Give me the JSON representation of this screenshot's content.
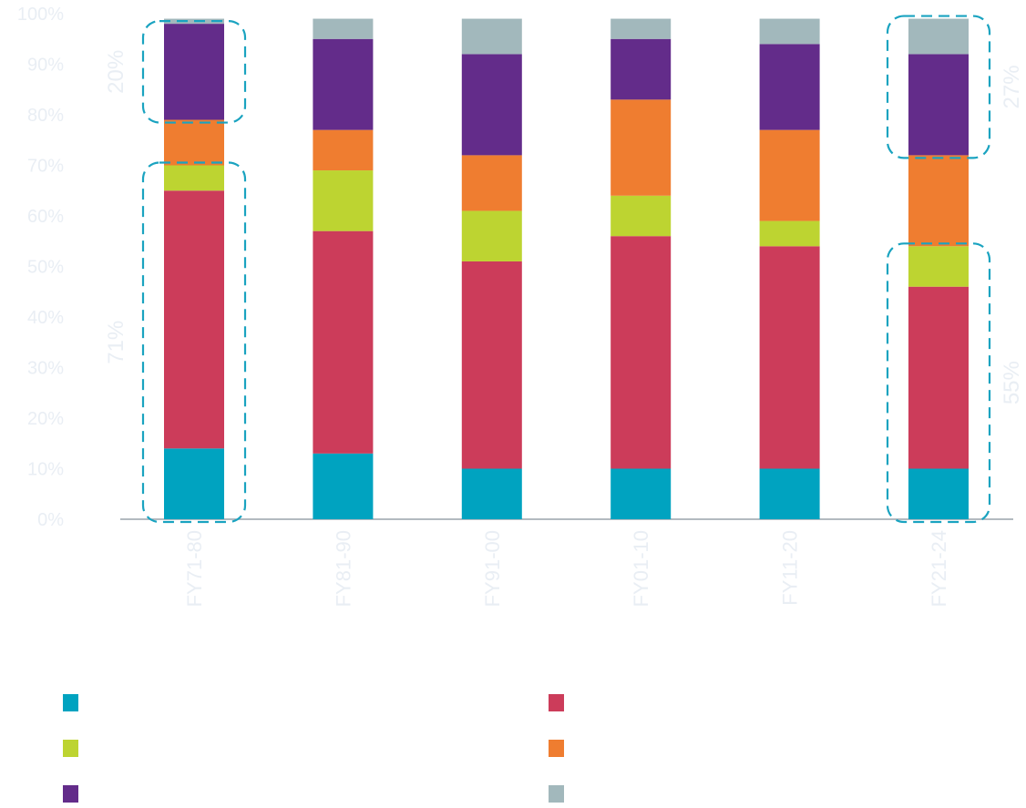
{
  "chart_data": {
    "type": "bar",
    "stacked": true,
    "categories": [
      "FY71-80",
      "FY81-90",
      "FY91-00",
      "FY01-10",
      "FY11-20",
      "FY21-24"
    ],
    "series": [
      {
        "color": "#00a3c0",
        "values": [
          14,
          13,
          10,
          10,
          10,
          10
        ]
      },
      {
        "color": "#cc3c5a",
        "values": [
          51,
          44,
          41,
          46,
          44,
          36
        ]
      },
      {
        "color": "#bdd431",
        "values": [
          5,
          12,
          10,
          8,
          5,
          8
        ]
      },
      {
        "color": "#ef7d30",
        "values": [
          9,
          8,
          11,
          19,
          18,
          18
        ]
      },
      {
        "color": "#632c8a",
        "values": [
          19,
          18,
          20,
          12,
          17,
          20
        ]
      },
      {
        "color": "#a2b8bc",
        "values": [
          1,
          4,
          7,
          4,
          5,
          7
        ]
      }
    ],
    "yticks": [
      "0%",
      "10%",
      "20%",
      "30%",
      "40%",
      "50%",
      "60%",
      "70%",
      "80%",
      "90%",
      "100%"
    ],
    "ylim": [
      0,
      100
    ],
    "grid": false,
    "legend_placement": "bottom",
    "annotations": [
      {
        "category": "FY71-80",
        "from": 79,
        "to": 98,
        "label": "20%",
        "side": "left"
      },
      {
        "category": "FY71-80",
        "from": 0,
        "to": 70,
        "label": "71%",
        "side": "left"
      },
      {
        "category": "FY21-24",
        "from": 72,
        "to": 99,
        "label": "27%",
        "side": "right"
      },
      {
        "category": "FY21-24",
        "from": 0,
        "to": 54,
        "label": "55%",
        "side": "right"
      }
    ],
    "annotation_color": "#1aa3c0"
  }
}
